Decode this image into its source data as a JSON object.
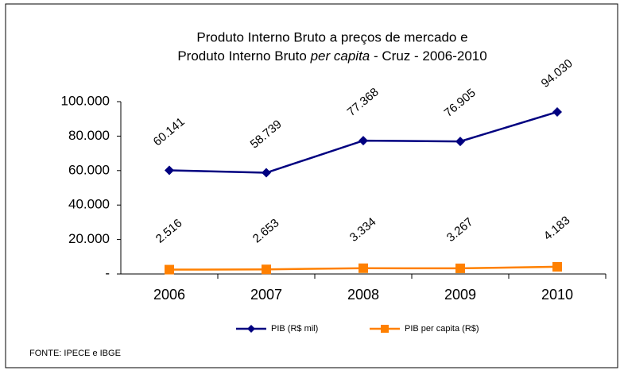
{
  "chart_data": {
    "type": "line",
    "title": {
      "line1": "Produto Interno Bruto a preços de mercado e",
      "line2": [
        "Produto Interno Bruto",
        "per capita",
        "- Cruz - 2006-2010"
      ]
    },
    "categories": [
      "2006",
      "2007",
      "2008",
      "2009",
      "2010"
    ],
    "series": [
      {
        "name": "PIB (R$ mil)",
        "color": "#000080",
        "marker": "diamond",
        "values": [
          60141,
          58739,
          77368,
          76905,
          94030
        ],
        "value_labels": [
          "60.141",
          "58.739",
          "77.368",
          "76.905",
          "94.030"
        ]
      },
      {
        "name": "PIB per capita (R$)",
        "color": "#ff8000",
        "marker": "square",
        "values": [
          2516,
          2653,
          3334,
          3267,
          4183
        ],
        "value_labels": [
          "2.516",
          "2.653",
          "3.334",
          "3.267",
          "4.183"
        ]
      }
    ],
    "ylim": [
      0,
      100000
    ],
    "yticks": [
      {
        "value": 0,
        "label": "-"
      },
      {
        "value": 20000,
        "label": "20.000"
      },
      {
        "value": 40000,
        "label": "40.000"
      },
      {
        "value": 60000,
        "label": "60.000"
      },
      {
        "value": 80000,
        "label": "80.000"
      },
      {
        "value": 100000,
        "label": "100.000"
      }
    ],
    "legend": "bottom",
    "source": "FONTE: IPECE e IBGE"
  }
}
